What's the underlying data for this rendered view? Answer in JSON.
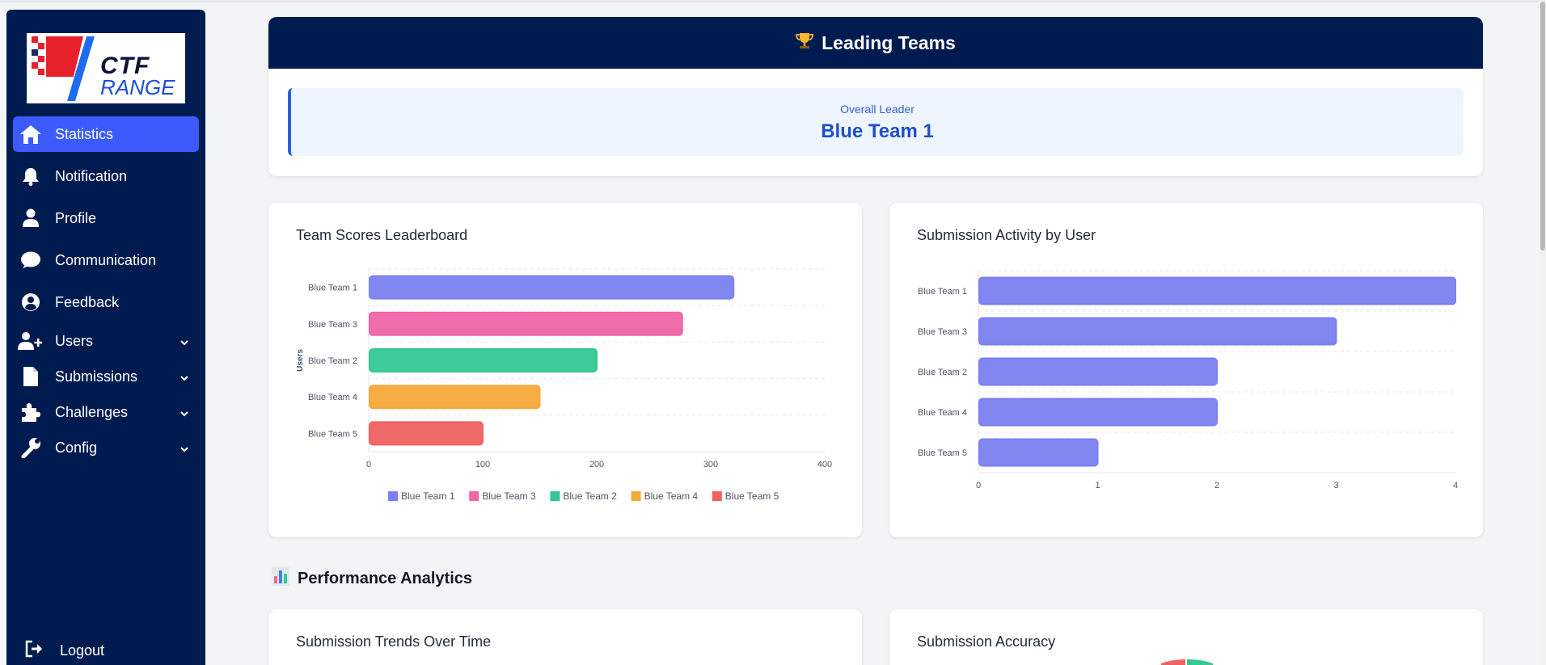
{
  "sidebar": {
    "logo": {
      "line1": "CTF",
      "line2": "RANGE"
    },
    "items": [
      {
        "label": "Statistics",
        "icon": "home-icon",
        "active": true,
        "expandable": false
      },
      {
        "label": "Notification",
        "icon": "bell-icon",
        "active": false,
        "expandable": false
      },
      {
        "label": "Profile",
        "icon": "user-icon",
        "active": false,
        "expandable": false
      },
      {
        "label": "Communication",
        "icon": "chat-bubble-icon",
        "active": false,
        "expandable": false
      },
      {
        "label": "Feedback",
        "icon": "user-circle-icon",
        "active": false,
        "expandable": false
      },
      {
        "label": "Users",
        "icon": "user-plus-icon",
        "active": false,
        "expandable": true
      },
      {
        "label": "Submissions",
        "icon": "file-icon",
        "active": false,
        "expandable": true
      },
      {
        "label": "Challenges",
        "icon": "puzzle-icon",
        "active": false,
        "expandable": true
      },
      {
        "label": "Config",
        "icon": "wrench-icon",
        "active": false,
        "expandable": true
      }
    ],
    "logout": {
      "label": "Logout",
      "icon": "logout-icon"
    }
  },
  "leading": {
    "title": "Leading Teams",
    "icon": "trophy-icon",
    "leader_label": "Overall Leader",
    "leader_name": "Blue Team 1"
  },
  "section": {
    "title": "Performance Analytics",
    "icon": "bar-chart-icon"
  },
  "bottom_cards": [
    {
      "title": "Submission Trends Over Time"
    },
    {
      "title": "Submission Accuracy"
    }
  ],
  "colors": {
    "sidebar_bg": "#001b50",
    "active_item": "#3b5bfd",
    "series": [
      "#7b7ff0",
      "#ef65a8",
      "#34c892",
      "#f5a93a",
      "#f06262"
    ]
  },
  "chart_data": [
    {
      "type": "bar",
      "orientation": "horizontal",
      "title": "Team Scores Leaderboard",
      "categories": [
        "Blue Team 1",
        "Blue Team 3",
        "Blue Team 2",
        "Blue Team 4",
        "Blue Team 5"
      ],
      "values": [
        320,
        275,
        200,
        150,
        100
      ],
      "ylabel": "Users",
      "xlabel": "",
      "xlim": [
        0,
        400
      ],
      "xticks": [
        0,
        100,
        200,
        300,
        400
      ],
      "legend": [
        "Blue Team 1",
        "Blue Team 3",
        "Blue Team 2",
        "Blue Team 4",
        "Blue Team 5"
      ],
      "legend_position": "bottom",
      "grid": true
    },
    {
      "type": "bar",
      "orientation": "horizontal",
      "title": "Submission Activity by User",
      "categories": [
        "Blue Team 1",
        "Blue Team 3",
        "Blue Team 2",
        "Blue Team 4",
        "Blue Team 5"
      ],
      "values": [
        4,
        3,
        2,
        2,
        1
      ],
      "xlim": [
        0,
        4
      ],
      "xticks": [
        0,
        1,
        2,
        3,
        4
      ],
      "grid": true
    }
  ]
}
